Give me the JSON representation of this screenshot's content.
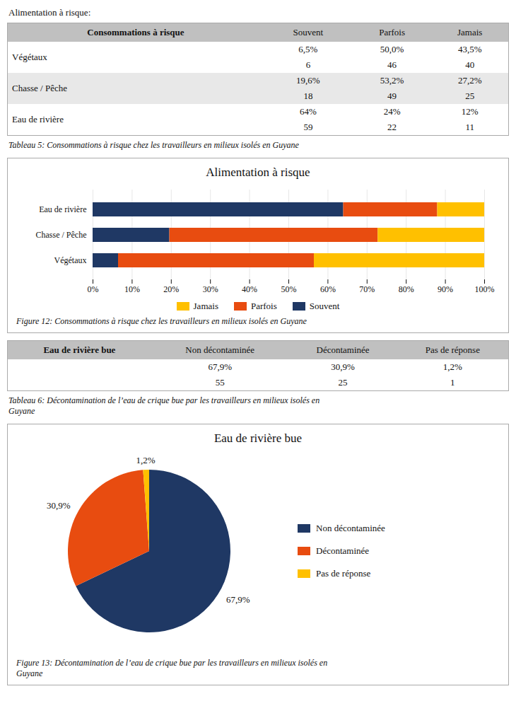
{
  "chart_data": [
    {
      "type": "table",
      "title": "Alimentation à risque:",
      "header": [
        "Consommations à risque",
        "Souvent",
        "Parfois",
        "Jamais"
      ],
      "rows": [
        [
          "Végétaux",
          "6,5%",
          "50,0%",
          "43,5%",
          "6",
          "46",
          "40"
        ],
        [
          "Chasse / Pêche",
          "19,6%",
          "53,2%",
          "27,2%",
          "18",
          "49",
          "25"
        ],
        [
          "Eau de rivière",
          "64%",
          "24%",
          "12%",
          "59",
          "22",
          "11"
        ]
      ],
      "caption": "Tableau 5: Consommations à risque chez les travailleurs en milieux isolés en Guyane"
    },
    {
      "type": "bar",
      "title": "Alimentation à risque",
      "orientation": "horizontal",
      "stacked": true,
      "categories": [
        "Végétaux",
        "Chasse / Pêche",
        "Eau de rivière"
      ],
      "series": [
        {
          "name": "Souvent",
          "color": "#1F3864",
          "values": [
            6.5,
            19.6,
            64.0
          ]
        },
        {
          "name": "Parfois",
          "color": "#E84C10",
          "values": [
            50.0,
            53.2,
            24.0
          ]
        },
        {
          "name": "Jamais",
          "color": "#FFC000",
          "values": [
            43.5,
            27.2,
            12.0
          ]
        }
      ],
      "xlim": [
        0,
        100
      ],
      "xticks": [
        {
          "value": 0,
          "label": "0%"
        },
        {
          "value": 10,
          "label": "10%"
        },
        {
          "value": 20,
          "label": "20%"
        },
        {
          "value": 30,
          "label": "30%"
        },
        {
          "value": 40,
          "label": "40%"
        },
        {
          "value": 50,
          "label": "50%"
        },
        {
          "value": 60,
          "label": "60%"
        },
        {
          "value": 70,
          "label": "70%"
        },
        {
          "value": 80,
          "label": "80%"
        },
        {
          "value": 90,
          "label": "90%"
        },
        {
          "value": 100,
          "label": "100%"
        }
      ],
      "grid": true,
      "legend": "bottom",
      "caption": "Figure 12: Consommations à risque chez les travailleurs en milieux isolés en Guyane"
    },
    {
      "type": "table",
      "header": [
        "Eau de rivière bue",
        "Non décontaminée",
        "Décontaminée",
        "Pas de réponse"
      ],
      "rows": [
        [
          "67,9%",
          "30,9%",
          "1,2%"
        ],
        [
          "55",
          "25",
          "1"
        ]
      ],
      "caption": "Tableau 6: Décontamination de l’eau de crique bue par les travailleurs en milieux isolés en\nGuyane"
    },
    {
      "type": "pie",
      "title": "Eau de rivière bue",
      "categories": [
        "Non décontaminée",
        "Décontaminée",
        "Pas de réponse"
      ],
      "values": [
        67.9,
        30.9,
        1.2
      ],
      "value_labels": [
        "67,9%",
        "30,9%",
        "1,2%"
      ],
      "colors": [
        "#1F3864",
        "#E84C10",
        "#FFC000"
      ],
      "data_labels": true,
      "legend": "right",
      "caption": "Figure 13: Décontamination de l’eau de crique bue par les travailleurs en milieux isolés en\nGuyane"
    }
  ]
}
